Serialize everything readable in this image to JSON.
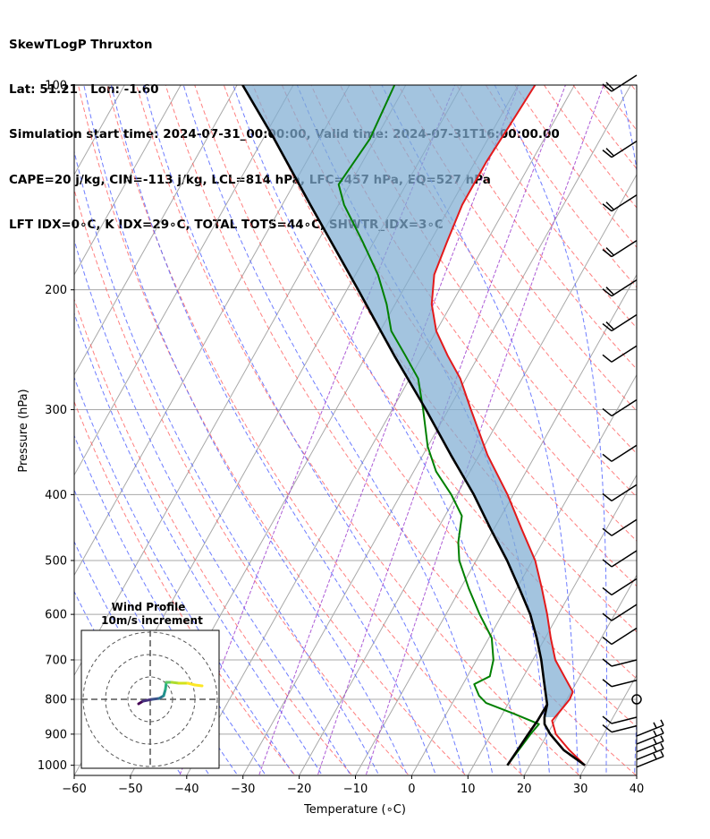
{
  "header": {
    "title": "SkewTLogP Thruxton",
    "location": "Lat: 51.21   Lon: -1.60",
    "times": "Simulation start time: 2024-07-31_00:00:00, Valid time: 2024-07-31T16:00:00.00",
    "indices1": "CAPE=20 j/kg, CIN=-113 j/kg, LCL=814 hPa, LFC=457 hPa, EQ=527 hPa",
    "indices2": "LFT IDX=0∘C, K IDX=29∘C, TOTAL TOTS=44∘C, SHWTR_IDX=3∘C"
  },
  "colors": {
    "temperature": "#e31a1c",
    "dewpoint": "#008000",
    "parcel": "#000000",
    "cape_fill": "#7fadd2",
    "dry_adiabat": "#ff5555",
    "moist_adiabat": "#5566ff",
    "mixing_ratio": "#9933cc",
    "isotherm": "#a8a8a8",
    "isobar": "#a8a8a8"
  },
  "chart_data": {
    "type": "line",
    "subtype": "skew-T log-P",
    "xlabel": "Temperature (∘C)",
    "ylabel": "Pressure (hPa)",
    "xlim": [
      -60,
      40
    ],
    "ylim": [
      1035,
      100
    ],
    "x_ticks": [
      "−60",
      "−50",
      "−40",
      "−30",
      "−20",
      "−10",
      "0",
      "10",
      "20",
      "30",
      "40"
    ],
    "x_tick_values": [
      -60,
      -50,
      -40,
      -30,
      -20,
      -10,
      0,
      10,
      20,
      30,
      40
    ],
    "y_ticks": [
      "100",
      "200",
      "300",
      "400",
      "500",
      "600",
      "700",
      "800",
      "900",
      "1000"
    ],
    "y_tick_values": [
      100,
      200,
      300,
      400,
      500,
      600,
      700,
      800,
      900,
      1000
    ],
    "series": [
      {
        "name": "Temperature",
        "points": [
          [
            1000,
            29.8
          ],
          [
            950,
            25.5
          ],
          [
            900,
            21.5
          ],
          [
            860,
            19.5
          ],
          [
            830,
            20.0
          ],
          [
            800,
            20.5
          ],
          [
            780,
            20.3
          ],
          [
            750,
            18.0
          ],
          [
            700,
            14.0
          ],
          [
            650,
            11.0
          ],
          [
            600,
            8.0
          ],
          [
            550,
            4.5
          ],
          [
            500,
            0.5
          ],
          [
            450,
            -5.0
          ],
          [
            400,
            -11.0
          ],
          [
            350,
            -18.5
          ],
          [
            300,
            -26.0
          ],
          [
            270,
            -31.0
          ],
          [
            250,
            -35.5
          ],
          [
            230,
            -40.0
          ],
          [
            210,
            -43.5
          ],
          [
            190,
            -46.0
          ],
          [
            170,
            -47.0
          ],
          [
            150,
            -48.0
          ],
          [
            130,
            -48.0
          ],
          [
            115,
            -47.5
          ],
          [
            100,
            -47.0
          ]
        ]
      },
      {
        "name": "Dewpoint",
        "points": [
          [
            1000,
            16.0
          ],
          [
            950,
            16.5
          ],
          [
            900,
            17.0
          ],
          [
            870,
            17.5
          ],
          [
            840,
            12.0
          ],
          [
            810,
            6.0
          ],
          [
            790,
            4.0
          ],
          [
            760,
            2.0
          ],
          [
            740,
            4.0
          ],
          [
            700,
            3.0
          ],
          [
            650,
            0.5
          ],
          [
            600,
            -4.0
          ],
          [
            550,
            -8.5
          ],
          [
            500,
            -13.0
          ],
          [
            470,
            -15.0
          ],
          [
            430,
            -17.0
          ],
          [
            400,
            -21.0
          ],
          [
            370,
            -26.0
          ],
          [
            340,
            -30.0
          ],
          [
            300,
            -34.5
          ],
          [
            270,
            -38.5
          ],
          [
            250,
            -43.0
          ],
          [
            230,
            -48.0
          ],
          [
            210,
            -51.5
          ],
          [
            190,
            -56.0
          ],
          [
            170,
            -62.0
          ],
          [
            150,
            -69.0
          ],
          [
            140,
            -72.0
          ],
          [
            120,
            -71.0
          ],
          [
            100,
            -72.0
          ]
        ]
      },
      {
        "name": "Parcel",
        "points": [
          [
            1000,
            29.8
          ],
          [
            950,
            24.5
          ],
          [
            900,
            20.5
          ],
          [
            870,
            18.5
          ],
          [
            850,
            17.8
          ],
          [
            814,
            17.0
          ],
          [
            750,
            14.0
          ],
          [
            700,
            11.5
          ],
          [
            650,
            8.5
          ],
          [
            600,
            5.0
          ],
          [
            550,
            0.5
          ],
          [
            500,
            -4.5
          ],
          [
            450,
            -10.5
          ],
          [
            400,
            -17.0
          ],
          [
            350,
            -25.0
          ],
          [
            300,
            -34.0
          ],
          [
            250,
            -45.0
          ],
          [
            200,
            -58.0
          ],
          [
            150,
            -75.0
          ],
          [
            120,
            -88.0
          ],
          [
            100,
            -99.0
          ]
        ]
      },
      {
        "name": "Parcel low branch",
        "points": [
          [
            1000,
            16.0
          ],
          [
            950,
            16.3
          ],
          [
            900,
            16.6
          ],
          [
            860,
            16.9
          ],
          [
            814,
            17.0
          ]
        ]
      }
    ],
    "wind_barbs_hpa": [
      1000,
      975,
      950,
      925,
      900,
      875,
      850,
      800,
      750,
      700,
      650,
      600,
      550,
      500,
      450,
      400,
      350,
      300,
      250,
      225,
      200,
      175,
      150,
      125,
      100
    ],
    "hodograph": {
      "title": "Wind Profile",
      "subtitle": "10m/s increment",
      "ring_spacing_ms": 10
    }
  }
}
